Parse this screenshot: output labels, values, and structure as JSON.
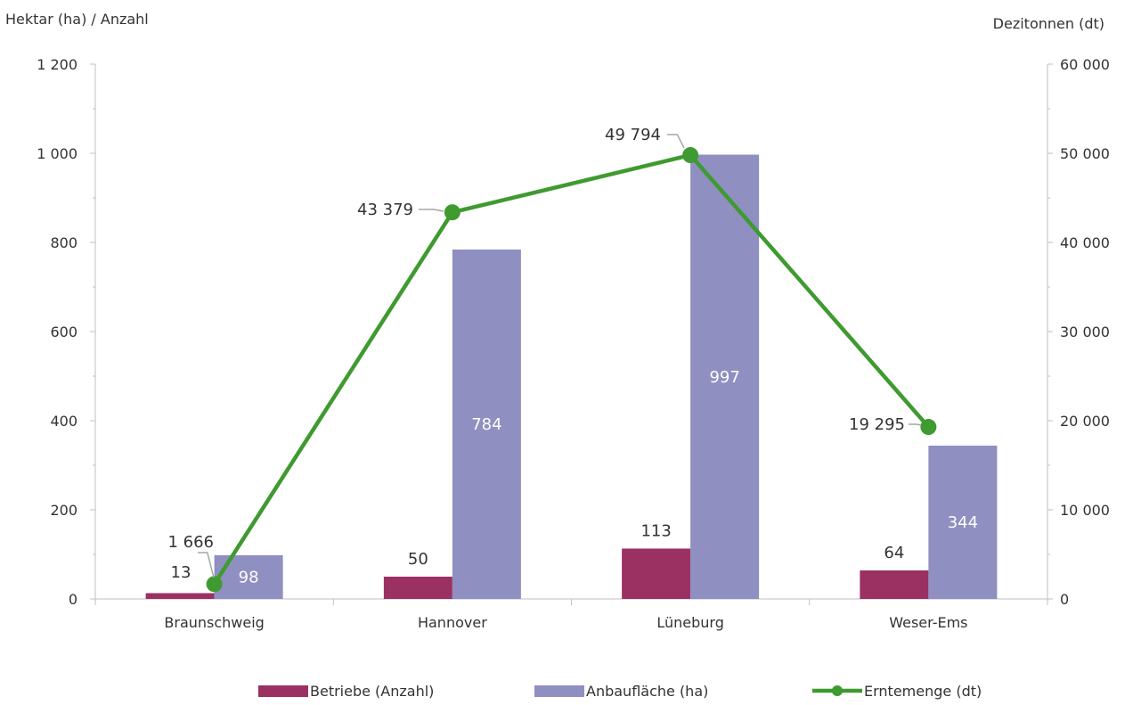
{
  "chart_data": {
    "type": "bar",
    "y_left_label": "Hektar (ha) / Anzahl",
    "y_right_label": "Dezitonnen (dt)",
    "categories": [
      "Braunschweig",
      "Hannover",
      "Lüneburg",
      "Weser-Ems"
    ],
    "y_left_range": [
      0,
      1200
    ],
    "y_right_range": [
      0,
      60000
    ],
    "y_left_ticks": [
      0,
      200,
      400,
      600,
      800,
      1000,
      1200
    ],
    "y_left_tick_labels": [
      "0",
      "200",
      "400",
      "600",
      "800",
      "1 000",
      "1 200"
    ],
    "y_right_ticks": [
      0,
      10000,
      20000,
      30000,
      40000,
      50000,
      60000
    ],
    "y_right_tick_labels": [
      "0",
      "10 000",
      "20 000",
      "30 000",
      "40 000",
      "50 000",
      "60 000"
    ],
    "series": [
      {
        "name": "Betriebe (Anzahl)",
        "type": "bar",
        "axis": "left",
        "color": "#9b3062",
        "values": [
          13,
          50,
          113,
          64
        ],
        "labels": [
          "13",
          "50",
          "113",
          "64"
        ]
      },
      {
        "name": "Anbaufläche (ha)",
        "type": "bar",
        "axis": "left",
        "color": "#8f8fc2",
        "values": [
          98,
          784,
          997,
          344
        ],
        "labels": [
          "98",
          "784",
          "997",
          "344"
        ]
      },
      {
        "name": "Erntemenge (dt)",
        "type": "line",
        "axis": "right",
        "color": "#3f9a2f",
        "values": [
          1666,
          43379,
          49794,
          19295
        ],
        "labels": [
          "1 666",
          "43 379",
          "49 794",
          "19 295"
        ]
      }
    ],
    "grid": false,
    "legend_position": "bottom"
  }
}
